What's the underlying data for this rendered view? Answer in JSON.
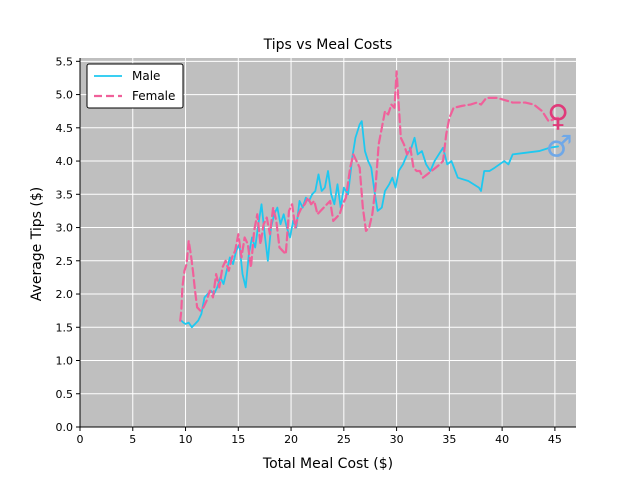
{
  "chart_data": {
    "type": "line",
    "title": "Tips vs Meal Costs",
    "xlabel": "Total Meal Cost ($)",
    "ylabel": "Average Tips ($)",
    "xlim": [
      0,
      47
    ],
    "ylim": [
      0,
      5.55
    ],
    "xticks": [
      0,
      5,
      10,
      15,
      20,
      25,
      30,
      35,
      40,
      45
    ],
    "yticks": [
      0.0,
      0.5,
      1.0,
      1.5,
      2.0,
      2.5,
      3.0,
      3.5,
      4.0,
      4.5,
      5.0,
      5.5
    ],
    "grid": true,
    "background": "#bfbfbf",
    "legend_position": "top-left",
    "series": [
      {
        "name": "Male",
        "color": "#1ec8f0",
        "dash": "solid",
        "points": [
          [
            9.6,
            1.6
          ],
          [
            9.8,
            1.57
          ],
          [
            10.0,
            1.55
          ],
          [
            10.3,
            1.57
          ],
          [
            10.6,
            1.5
          ],
          [
            10.9,
            1.55
          ],
          [
            11.2,
            1.6
          ],
          [
            11.5,
            1.7
          ],
          [
            11.8,
            1.95
          ],
          [
            12.1,
            2.0
          ],
          [
            12.4,
            2.05
          ],
          [
            12.7,
            2.0
          ],
          [
            13.0,
            2.1
          ],
          [
            13.3,
            2.25
          ],
          [
            13.6,
            2.15
          ],
          [
            13.9,
            2.35
          ],
          [
            14.2,
            2.55
          ],
          [
            14.5,
            2.45
          ],
          [
            14.8,
            2.65
          ],
          [
            15.1,
            2.75
          ],
          [
            15.4,
            2.3
          ],
          [
            15.7,
            2.1
          ],
          [
            16.0,
            2.6
          ],
          [
            16.3,
            2.85
          ],
          [
            16.6,
            2.7
          ],
          [
            16.9,
            3.05
          ],
          [
            17.2,
            3.35
          ],
          [
            17.5,
            2.9
          ],
          [
            17.8,
            2.5
          ],
          [
            18.1,
            3.0
          ],
          [
            18.4,
            3.2
          ],
          [
            18.7,
            3.3
          ],
          [
            19.0,
            3.05
          ],
          [
            19.3,
            3.2
          ],
          [
            19.6,
            3.0
          ],
          [
            19.9,
            2.85
          ],
          [
            20.2,
            3.1
          ],
          [
            20.5,
            3.0
          ],
          [
            20.8,
            3.4
          ],
          [
            21.1,
            3.3
          ],
          [
            21.4,
            3.45
          ],
          [
            21.7,
            3.4
          ],
          [
            22.0,
            3.5
          ],
          [
            22.3,
            3.55
          ],
          [
            22.6,
            3.8
          ],
          [
            22.9,
            3.55
          ],
          [
            23.2,
            3.6
          ],
          [
            23.5,
            3.85
          ],
          [
            23.8,
            3.5
          ],
          [
            24.1,
            3.35
          ],
          [
            24.4,
            3.65
          ],
          [
            24.7,
            3.3
          ],
          [
            25.0,
            3.6
          ],
          [
            25.4,
            3.5
          ],
          [
            25.8,
            4.05
          ],
          [
            26.1,
            4.35
          ],
          [
            26.5,
            4.55
          ],
          [
            26.7,
            4.6
          ],
          [
            27.0,
            4.15
          ],
          [
            27.3,
            4.0
          ],
          [
            27.6,
            3.9
          ],
          [
            27.9,
            3.55
          ],
          [
            28.2,
            3.25
          ],
          [
            28.6,
            3.3
          ],
          [
            28.9,
            3.55
          ],
          [
            29.3,
            3.65
          ],
          [
            29.6,
            3.75
          ],
          [
            29.9,
            3.6
          ],
          [
            30.2,
            3.85
          ],
          [
            30.6,
            3.95
          ],
          [
            31.0,
            4.1
          ],
          [
            31.4,
            4.2
          ],
          [
            31.7,
            4.35
          ],
          [
            32.0,
            4.1
          ],
          [
            32.4,
            4.15
          ],
          [
            32.8,
            3.95
          ],
          [
            33.2,
            3.85
          ],
          [
            33.6,
            4.0
          ],
          [
            34.0,
            4.1
          ],
          [
            34.4,
            4.2
          ],
          [
            34.8,
            3.95
          ],
          [
            35.2,
            4.0
          ],
          [
            35.8,
            3.75
          ],
          [
            36.8,
            3.7
          ],
          [
            37.8,
            3.6
          ],
          [
            38.0,
            3.55
          ],
          [
            38.3,
            3.85
          ],
          [
            38.8,
            3.85
          ],
          [
            39.3,
            3.9
          ],
          [
            40.2,
            4.0
          ],
          [
            40.6,
            3.95
          ],
          [
            41.0,
            4.1
          ],
          [
            42.0,
            4.12
          ],
          [
            43.5,
            4.15
          ],
          [
            44.5,
            4.2
          ],
          [
            45.3,
            4.22
          ]
        ]
      },
      {
        "name": "Female",
        "color": "#f0609a",
        "dash": "dashed",
        "points": [
          [
            9.5,
            1.6
          ],
          [
            9.6,
            1.75
          ],
          [
            9.7,
            2.1
          ],
          [
            9.9,
            2.35
          ],
          [
            10.1,
            2.45
          ],
          [
            10.3,
            2.8
          ],
          [
            10.5,
            2.6
          ],
          [
            10.7,
            2.35
          ],
          [
            10.9,
            2.05
          ],
          [
            11.1,
            1.8
          ],
          [
            11.4,
            1.75
          ],
          [
            11.7,
            1.8
          ],
          [
            12.0,
            1.9
          ],
          [
            12.3,
            2.05
          ],
          [
            12.6,
            1.95
          ],
          [
            12.9,
            2.3
          ],
          [
            13.2,
            2.1
          ],
          [
            13.5,
            2.4
          ],
          [
            13.8,
            2.5
          ],
          [
            14.1,
            2.35
          ],
          [
            14.4,
            2.55
          ],
          [
            14.7,
            2.65
          ],
          [
            15.0,
            2.9
          ],
          [
            15.3,
            2.55
          ],
          [
            15.6,
            2.85
          ],
          [
            15.9,
            2.75
          ],
          [
            16.2,
            2.4
          ],
          [
            16.5,
            2.95
          ],
          [
            16.8,
            3.2
          ],
          [
            17.1,
            2.75
          ],
          [
            17.4,
            3.05
          ],
          [
            17.7,
            3.15
          ],
          [
            18.0,
            2.9
          ],
          [
            18.3,
            3.3
          ],
          [
            18.6,
            3.1
          ],
          [
            18.9,
            2.7
          ],
          [
            19.2,
            2.65
          ],
          [
            19.5,
            2.6
          ],
          [
            19.8,
            3.25
          ],
          [
            20.1,
            3.35
          ],
          [
            20.4,
            3.0
          ],
          [
            20.7,
            3.2
          ],
          [
            21.0,
            3.3
          ],
          [
            21.3,
            3.35
          ],
          [
            21.6,
            3.45
          ],
          [
            21.9,
            3.35
          ],
          [
            22.2,
            3.4
          ],
          [
            22.5,
            3.2
          ],
          [
            22.8,
            3.25
          ],
          [
            23.1,
            3.3
          ],
          [
            23.4,
            3.35
          ],
          [
            23.7,
            3.4
          ],
          [
            24.0,
            3.1
          ],
          [
            24.3,
            3.15
          ],
          [
            24.6,
            3.2
          ],
          [
            24.9,
            3.35
          ],
          [
            25.2,
            3.45
          ],
          [
            25.6,
            3.9
          ],
          [
            25.9,
            4.1
          ],
          [
            26.2,
            4.0
          ],
          [
            26.5,
            3.9
          ],
          [
            26.8,
            3.3
          ],
          [
            27.1,
            2.95
          ],
          [
            27.4,
            3.0
          ],
          [
            27.7,
            3.2
          ],
          [
            28.0,
            3.6
          ],
          [
            28.3,
            4.25
          ],
          [
            28.6,
            4.5
          ],
          [
            28.9,
            4.75
          ],
          [
            29.2,
            4.7
          ],
          [
            29.5,
            4.85
          ],
          [
            29.8,
            4.8
          ],
          [
            30.0,
            5.35
          ],
          [
            30.2,
            4.85
          ],
          [
            30.4,
            4.35
          ],
          [
            30.7,
            4.25
          ],
          [
            31.0,
            4.1
          ],
          [
            31.3,
            4.2
          ],
          [
            31.6,
            3.9
          ],
          [
            31.9,
            3.85
          ],
          [
            32.2,
            3.85
          ],
          [
            32.5,
            3.75
          ],
          [
            32.9,
            3.8
          ],
          [
            33.3,
            3.85
          ],
          [
            33.7,
            3.9
          ],
          [
            34.1,
            3.95
          ],
          [
            34.4,
            4.0
          ],
          [
            34.7,
            4.4
          ],
          [
            35.0,
            4.65
          ],
          [
            35.4,
            4.8
          ],
          [
            36.2,
            4.83
          ],
          [
            37.0,
            4.85
          ],
          [
            37.6,
            4.88
          ],
          [
            38.0,
            4.85
          ],
          [
            38.5,
            4.95
          ],
          [
            39.5,
            4.95
          ],
          [
            40.2,
            4.92
          ],
          [
            41.0,
            4.88
          ],
          [
            42.2,
            4.88
          ],
          [
            43.0,
            4.85
          ],
          [
            43.8,
            4.75
          ],
          [
            44.4,
            4.6
          ],
          [
            45.3,
            4.65
          ]
        ]
      }
    ],
    "markers": [
      {
        "name": "female-symbol",
        "glyph": "♀",
        "x": 45.3,
        "y": 4.68,
        "color": "#e03a7a"
      },
      {
        "name": "male-symbol",
        "glyph": "♂",
        "x": 45.4,
        "y": 4.22,
        "color": "#6fa8e8"
      }
    ]
  }
}
